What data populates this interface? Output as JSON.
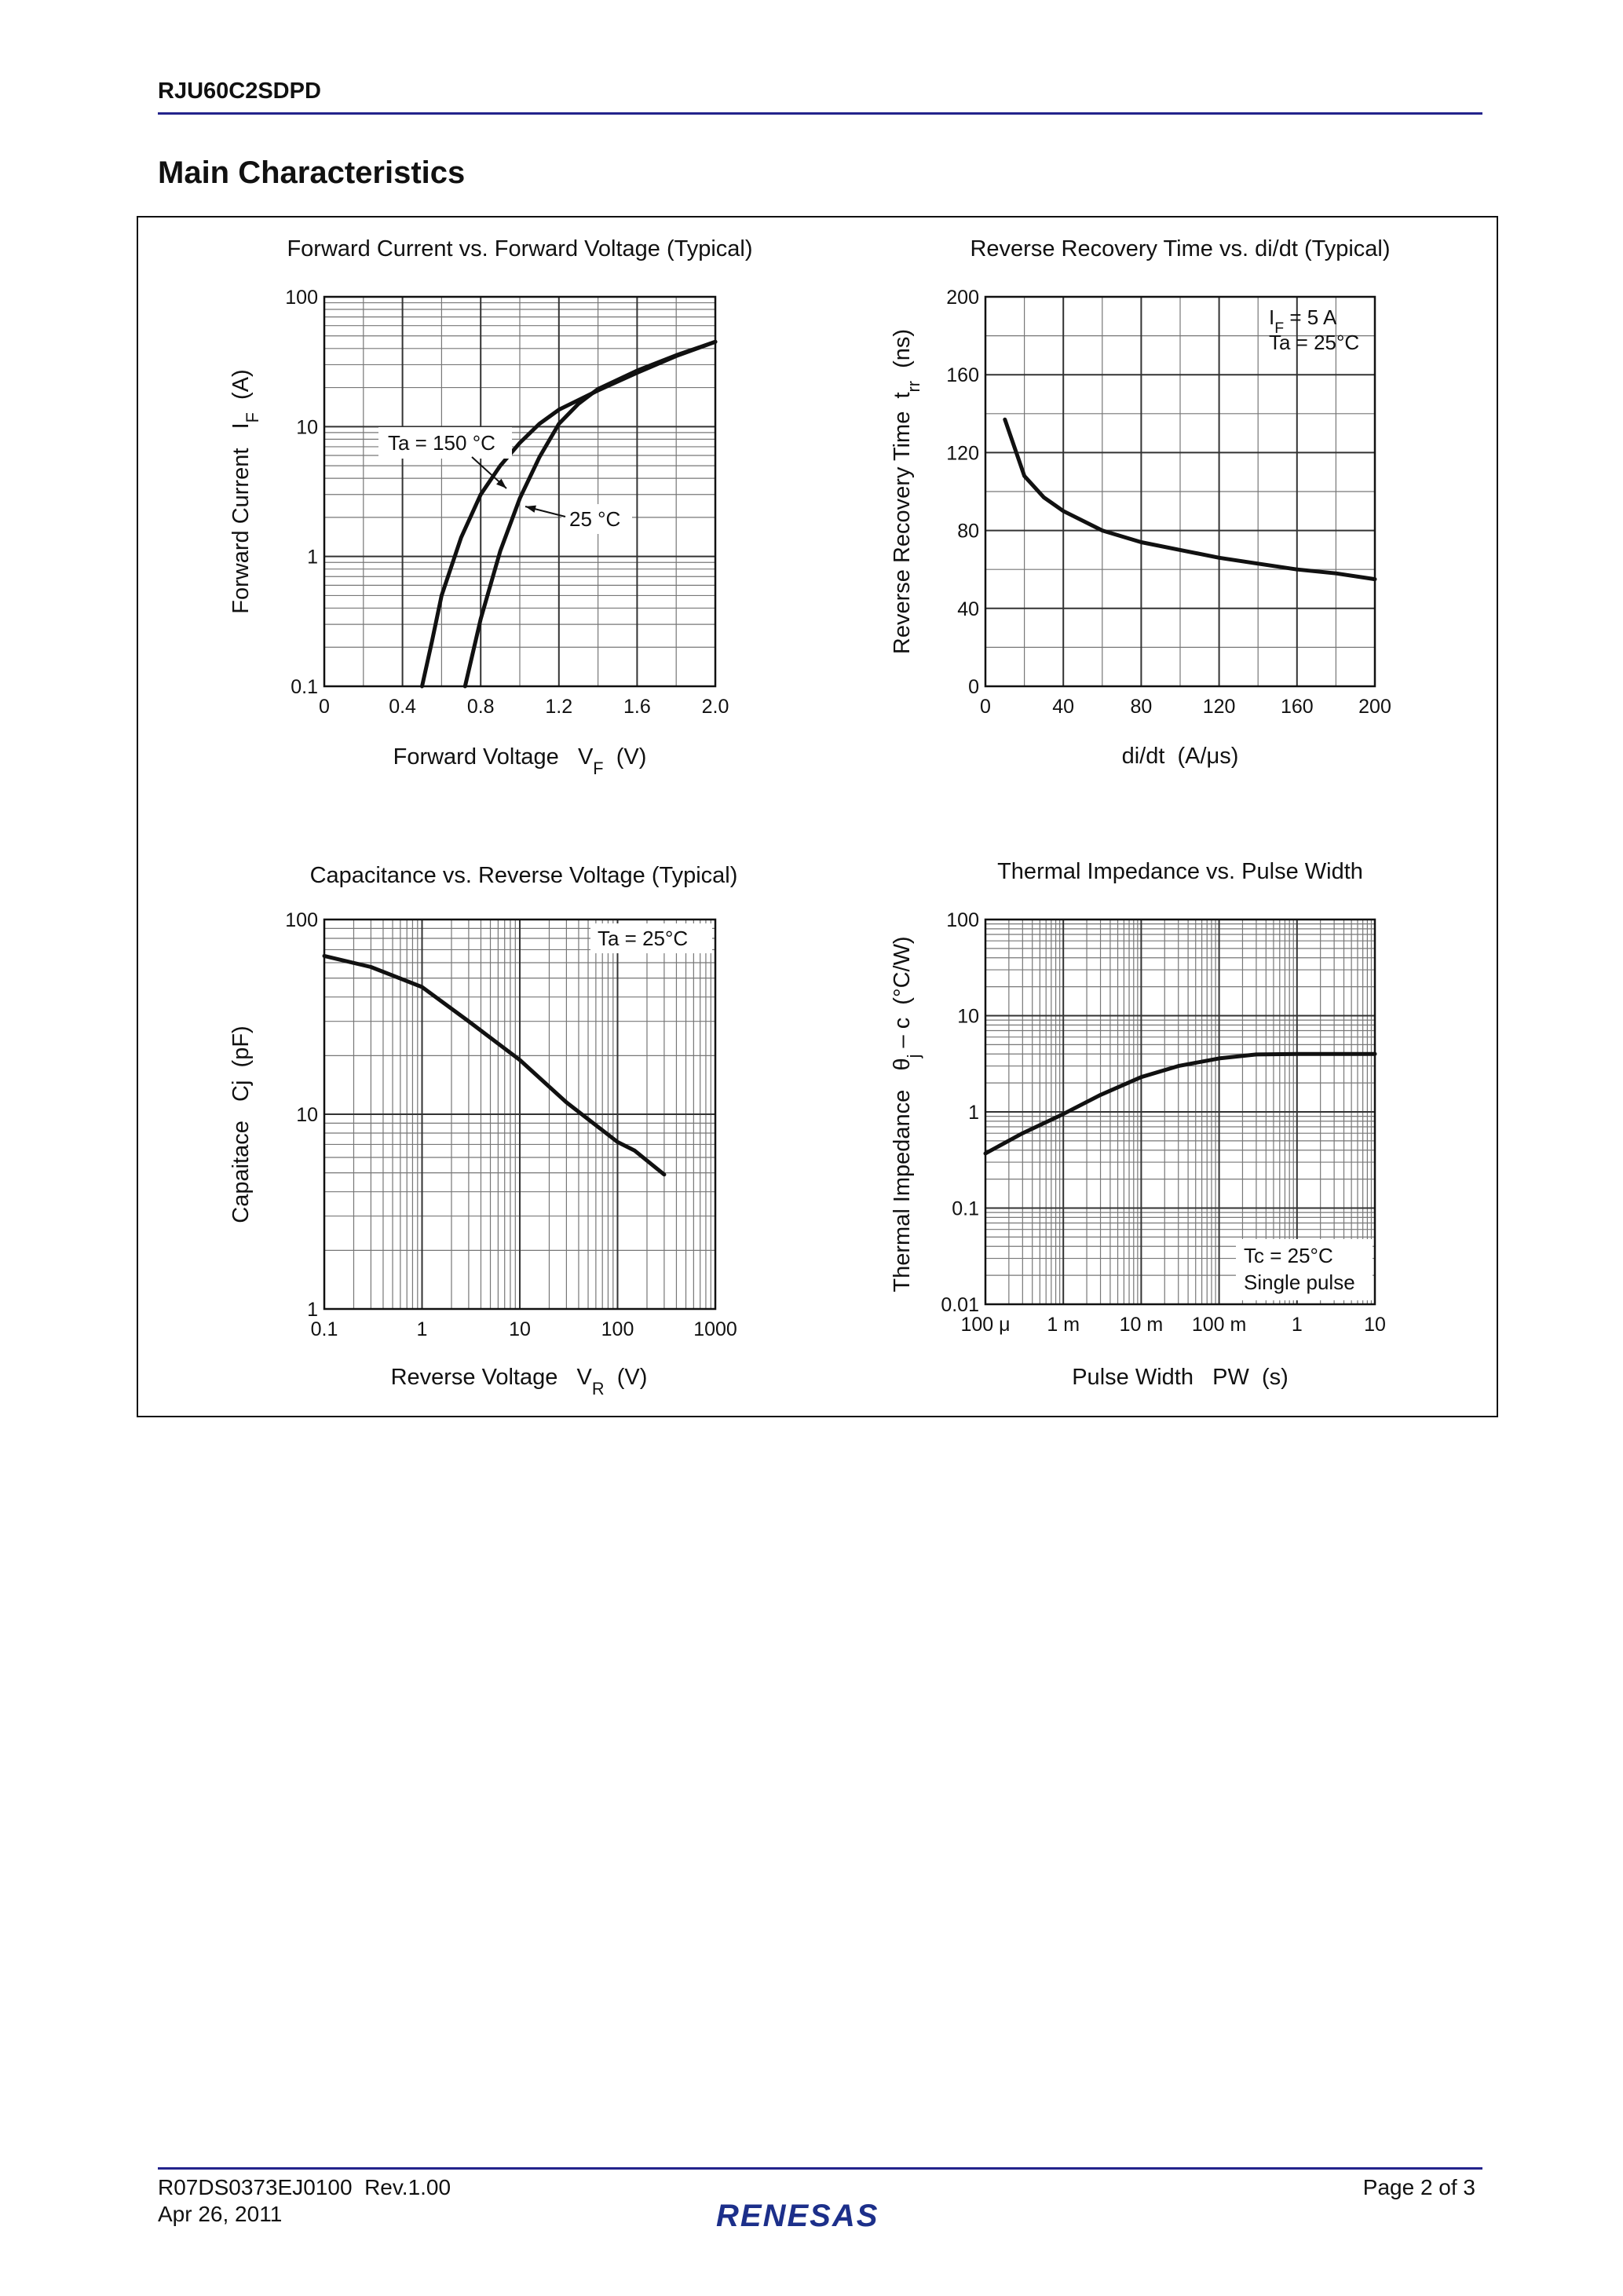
{
  "header": {
    "part_number": "RJU60C2SDPD",
    "section_title": "Main Characteristics"
  },
  "chart_data": [
    {
      "type": "line",
      "title": "Forward Current vs. Forward Voltage (Typical)",
      "x_label": [
        "Forward Voltage   V",
        {
          "sub": "F"
        },
        "  (V)"
      ],
      "y_label": [
        "Forward Current   I",
        {
          "sub": "F"
        },
        "  (A)"
      ],
      "xlim": [
        0,
        2
      ],
      "xticks": [
        0,
        0.4,
        0.8,
        1.2,
        1.6,
        {
          "value": 2,
          "label": "2.0"
        }
      ],
      "minor_xticks": [
        0.2,
        0.6,
        1.0,
        1.4,
        1.8
      ],
      "ylim": [
        0.1,
        100
      ],
      "yscale": "log",
      "yticks": [
        0.1,
        1,
        10,
        100
      ],
      "minor_yticks": [
        0.2,
        0.3,
        0.4,
        0.5,
        0.6,
        0.7,
        0.8,
        0.9,
        2,
        3,
        4,
        5,
        6,
        7,
        8,
        9,
        20,
        30,
        40,
        50,
        60,
        70,
        80,
        90
      ],
      "grid": true,
      "series": [
        {
          "color": "#111111",
          "x": [
            0.5,
            0.55,
            0.6,
            0.7,
            0.8,
            0.9,
            1.0,
            1.1,
            1.2,
            1.4,
            1.6,
            1.8,
            2.0
          ],
          "values": [
            0.1,
            0.22,
            0.5,
            1.4,
            3,
            5,
            7.5,
            10.5,
            13.5,
            19,
            26,
            35,
            45
          ]
        },
        {
          "color": "#111111",
          "x": [
            0.72,
            0.8,
            0.9,
            1.0,
            1.1,
            1.2,
            1.3,
            1.4,
            1.6,
            1.8,
            2.0
          ],
          "values": [
            0.1,
            0.33,
            1.1,
            2.8,
            5.8,
            10.5,
            15,
            19.5,
            27,
            35.5,
            45
          ]
        }
      ],
      "annotations": [
        "Ta = 150 °C",
        "25 °C"
      ]
    },
    {
      "type": "line",
      "title": "Reverse Recovery Time vs. di/dt (Typical)",
      "x_label": "di/dt  (A/μs)",
      "y_label": [
        "Reverse Recovery Time  t",
        {
          "sub": "rr"
        },
        "  (ns)"
      ],
      "xlim": [
        0,
        200
      ],
      "xticks": [
        0,
        40,
        80,
        120,
        160,
        200
      ],
      "minor_xticks": [
        20,
        60,
        100,
        140,
        180
      ],
      "ylim": [
        0,
        200
      ],
      "yticks": [
        0,
        40,
        80,
        120,
        160,
        200
      ],
      "minor_yticks": [
        20,
        60,
        100,
        140,
        180
      ],
      "grid": true,
      "series": [
        {
          "color": "#111111",
          "x": [
            10,
            20,
            30,
            40,
            60,
            80,
            100,
            120,
            140,
            160,
            180,
            200
          ],
          "values": [
            137,
            108,
            97,
            90,
            80,
            74,
            70,
            66,
            63,
            60,
            58,
            55
          ]
        }
      ],
      "annotations": [
        [
          "I",
          {
            "sub": "F"
          },
          " = 5 A"
        ],
        "Ta = 25°C"
      ]
    },
    {
      "type": "line",
      "title": "Capacitance vs. Reverse Voltage (Typical)",
      "x_label": [
        "Reverse Voltage   V",
        {
          "sub": "R"
        },
        "  (V)"
      ],
      "y_label": "Capaitace   Cj  (pF)",
      "xlim": [
        0.1,
        1000
      ],
      "xscale": "log",
      "xticks": [
        0.1,
        1,
        10,
        100,
        1000
      ],
      "minor_xticks": [
        0.2,
        0.3,
        0.4,
        0.5,
        0.6,
        0.7,
        0.8,
        0.9,
        2,
        3,
        4,
        5,
        6,
        7,
        8,
        9,
        20,
        30,
        40,
        50,
        60,
        70,
        80,
        90,
        200,
        300,
        400,
        500,
        600,
        700,
        800,
        900
      ],
      "ylim": [
        1,
        100
      ],
      "yscale": "log",
      "yticks": [
        1,
        10,
        100
      ],
      "minor_yticks": [
        2,
        3,
        4,
        5,
        6,
        7,
        8,
        9,
        20,
        30,
        40,
        50,
        60,
        70,
        80,
        90
      ],
      "grid": true,
      "series": [
        {
          "color": "#111111",
          "x": [
            0.1,
            0.3,
            1,
            3,
            10,
            30,
            100,
            150,
            300
          ],
          "values": [
            65,
            57,
            45,
            30,
            19,
            11.5,
            7.2,
            6.5,
            4.9
          ]
        }
      ],
      "annotations": [
        "Ta = 25°C"
      ]
    },
    {
      "type": "line",
      "title": "Thermal Impedance vs. Pulse Width",
      "x_label": "Pulse Width   PW  (s)",
      "y_label": [
        "Thermal Impedance   θ",
        {
          "sub": "j"
        },
        " – c  (°C/W)"
      ],
      "xlim": [
        0.0001,
        10
      ],
      "xscale": "log",
      "xticks": [
        {
          "value": 0.0001,
          "label": "100 μ"
        },
        {
          "value": 0.001,
          "label": "1 m"
        },
        {
          "value": 0.01,
          "label": "10 m"
        },
        {
          "value": 0.1,
          "label": "100 m"
        },
        1,
        10
      ],
      "minor_xticks": [
        0.0002,
        0.0003,
        0.0004,
        0.0005,
        0.0006,
        0.0007,
        0.0008,
        0.0009,
        0.002,
        0.003,
        0.004,
        0.005,
        0.006,
        0.007,
        0.008,
        0.009,
        0.02,
        0.03,
        0.04,
        0.05,
        0.06,
        0.07,
        0.08,
        0.09,
        0.2,
        0.3,
        0.4,
        0.5,
        0.6,
        0.7,
        0.8,
        0.9,
        2,
        3,
        4,
        5,
        6,
        7,
        8,
        9
      ],
      "ylim": [
        0.01,
        100
      ],
      "yscale": "log",
      "yticks": [
        0.01,
        0.1,
        1,
        10,
        100
      ],
      "minor_yticks": [
        0.02,
        0.03,
        0.04,
        0.05,
        0.06,
        0.07,
        0.08,
        0.09,
        0.2,
        0.3,
        0.4,
        0.5,
        0.6,
        0.7,
        0.8,
        0.9,
        2,
        3,
        4,
        5,
        6,
        7,
        8,
        9,
        20,
        30,
        40,
        50,
        60,
        70,
        80,
        90
      ],
      "grid": true,
      "series": [
        {
          "color": "#111111",
          "x": [
            0.0001,
            0.0003,
            0.001,
            0.003,
            0.01,
            0.03,
            0.1,
            0.3,
            1,
            10
          ],
          "values": [
            0.37,
            0.6,
            0.95,
            1.5,
            2.3,
            3.0,
            3.6,
            3.95,
            4,
            4
          ]
        }
      ],
      "annotations": [
        "Tc = 25°C",
        "Single pulse"
      ]
    }
  ],
  "footer": {
    "doc_number": "R07DS0373EJ0100  Rev.1.00",
    "date": "Apr 26, 2011",
    "page": "Page 2 of 3",
    "logo": "RENESAS"
  }
}
